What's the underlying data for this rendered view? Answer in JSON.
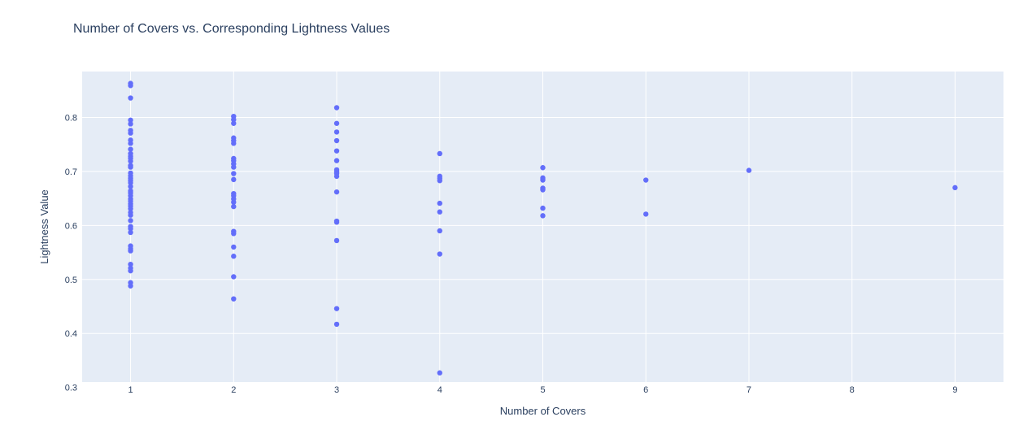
{
  "chart_data": {
    "type": "scatter",
    "title": "Number of Covers vs. Corresponding Lightness Values",
    "xlabel": "Number of Covers",
    "ylabel": "Lightness Value",
    "xlim": [
      0.53,
      9.47
    ],
    "ylim": [
      0.31,
      0.885
    ],
    "xticks": [
      1,
      2,
      3,
      4,
      5,
      6,
      7,
      8,
      9
    ],
    "yticks": [
      0.3,
      0.4,
      0.5,
      0.6,
      0.7,
      0.8
    ],
    "grid": true,
    "marker_color": "#636efa",
    "plot_background": "#e5ecf6",
    "points": [
      {
        "x": 1,
        "y": 0.863
      },
      {
        "x": 1,
        "y": 0.859
      },
      {
        "x": 1,
        "y": 0.836
      },
      {
        "x": 1,
        "y": 0.795
      },
      {
        "x": 1,
        "y": 0.788
      },
      {
        "x": 1,
        "y": 0.776
      },
      {
        "x": 1,
        "y": 0.771
      },
      {
        "x": 1,
        "y": 0.758
      },
      {
        "x": 1,
        "y": 0.752
      },
      {
        "x": 1,
        "y": 0.741
      },
      {
        "x": 1,
        "y": 0.733
      },
      {
        "x": 1,
        "y": 0.728
      },
      {
        "x": 1,
        "y": 0.724
      },
      {
        "x": 1,
        "y": 0.719
      },
      {
        "x": 1,
        "y": 0.711
      },
      {
        "x": 1,
        "y": 0.708
      },
      {
        "x": 1,
        "y": 0.697
      },
      {
        "x": 1,
        "y": 0.692
      },
      {
        "x": 1,
        "y": 0.687
      },
      {
        "x": 1,
        "y": 0.683
      },
      {
        "x": 1,
        "y": 0.679
      },
      {
        "x": 1,
        "y": 0.672
      },
      {
        "x": 1,
        "y": 0.664
      },
      {
        "x": 1,
        "y": 0.66
      },
      {
        "x": 1,
        "y": 0.655
      },
      {
        "x": 1,
        "y": 0.649
      },
      {
        "x": 1,
        "y": 0.645
      },
      {
        "x": 1,
        "y": 0.64
      },
      {
        "x": 1,
        "y": 0.636
      },
      {
        "x": 1,
        "y": 0.631
      },
      {
        "x": 1,
        "y": 0.624
      },
      {
        "x": 1,
        "y": 0.619
      },
      {
        "x": 1,
        "y": 0.609
      },
      {
        "x": 1,
        "y": 0.598
      },
      {
        "x": 1,
        "y": 0.594
      },
      {
        "x": 1,
        "y": 0.587
      },
      {
        "x": 1,
        "y": 0.562
      },
      {
        "x": 1,
        "y": 0.557
      },
      {
        "x": 1,
        "y": 0.553
      },
      {
        "x": 1,
        "y": 0.528
      },
      {
        "x": 1,
        "y": 0.521
      },
      {
        "x": 1,
        "y": 0.516
      },
      {
        "x": 1,
        "y": 0.494
      },
      {
        "x": 1,
        "y": 0.488
      },
      {
        "x": 2,
        "y": 0.802
      },
      {
        "x": 2,
        "y": 0.796
      },
      {
        "x": 2,
        "y": 0.789
      },
      {
        "x": 2,
        "y": 0.762
      },
      {
        "x": 2,
        "y": 0.757
      },
      {
        "x": 2,
        "y": 0.752
      },
      {
        "x": 2,
        "y": 0.724
      },
      {
        "x": 2,
        "y": 0.72
      },
      {
        "x": 2,
        "y": 0.714
      },
      {
        "x": 2,
        "y": 0.708
      },
      {
        "x": 2,
        "y": 0.696
      },
      {
        "x": 2,
        "y": 0.685
      },
      {
        "x": 2,
        "y": 0.659
      },
      {
        "x": 2,
        "y": 0.655
      },
      {
        "x": 2,
        "y": 0.649
      },
      {
        "x": 2,
        "y": 0.643
      },
      {
        "x": 2,
        "y": 0.635
      },
      {
        "x": 2,
        "y": 0.589
      },
      {
        "x": 2,
        "y": 0.585
      },
      {
        "x": 2,
        "y": 0.56
      },
      {
        "x": 2,
        "y": 0.543
      },
      {
        "x": 2,
        "y": 0.505
      },
      {
        "x": 2,
        "y": 0.464
      },
      {
        "x": 3,
        "y": 0.818
      },
      {
        "x": 3,
        "y": 0.789
      },
      {
        "x": 3,
        "y": 0.773
      },
      {
        "x": 3,
        "y": 0.757
      },
      {
        "x": 3,
        "y": 0.738
      },
      {
        "x": 3,
        "y": 0.72
      },
      {
        "x": 3,
        "y": 0.703
      },
      {
        "x": 3,
        "y": 0.699
      },
      {
        "x": 3,
        "y": 0.696
      },
      {
        "x": 3,
        "y": 0.691
      },
      {
        "x": 3,
        "y": 0.662
      },
      {
        "x": 3,
        "y": 0.608
      },
      {
        "x": 3,
        "y": 0.606
      },
      {
        "x": 3,
        "y": 0.572
      },
      {
        "x": 3,
        "y": 0.446
      },
      {
        "x": 3,
        "y": 0.417
      },
      {
        "x": 4,
        "y": 0.733
      },
      {
        "x": 4,
        "y": 0.691
      },
      {
        "x": 4,
        "y": 0.687
      },
      {
        "x": 4,
        "y": 0.683
      },
      {
        "x": 4,
        "y": 0.641
      },
      {
        "x": 4,
        "y": 0.625
      },
      {
        "x": 4,
        "y": 0.59
      },
      {
        "x": 4,
        "y": 0.547
      },
      {
        "x": 4,
        "y": 0.327
      },
      {
        "x": 5,
        "y": 0.707
      },
      {
        "x": 5,
        "y": 0.688
      },
      {
        "x": 5,
        "y": 0.684
      },
      {
        "x": 5,
        "y": 0.669
      },
      {
        "x": 5,
        "y": 0.666
      },
      {
        "x": 5,
        "y": 0.632
      },
      {
        "x": 5,
        "y": 0.618
      },
      {
        "x": 6,
        "y": 0.684
      },
      {
        "x": 6,
        "y": 0.621
      },
      {
        "x": 7,
        "y": 0.702
      },
      {
        "x": 9,
        "y": 0.67
      }
    ]
  }
}
